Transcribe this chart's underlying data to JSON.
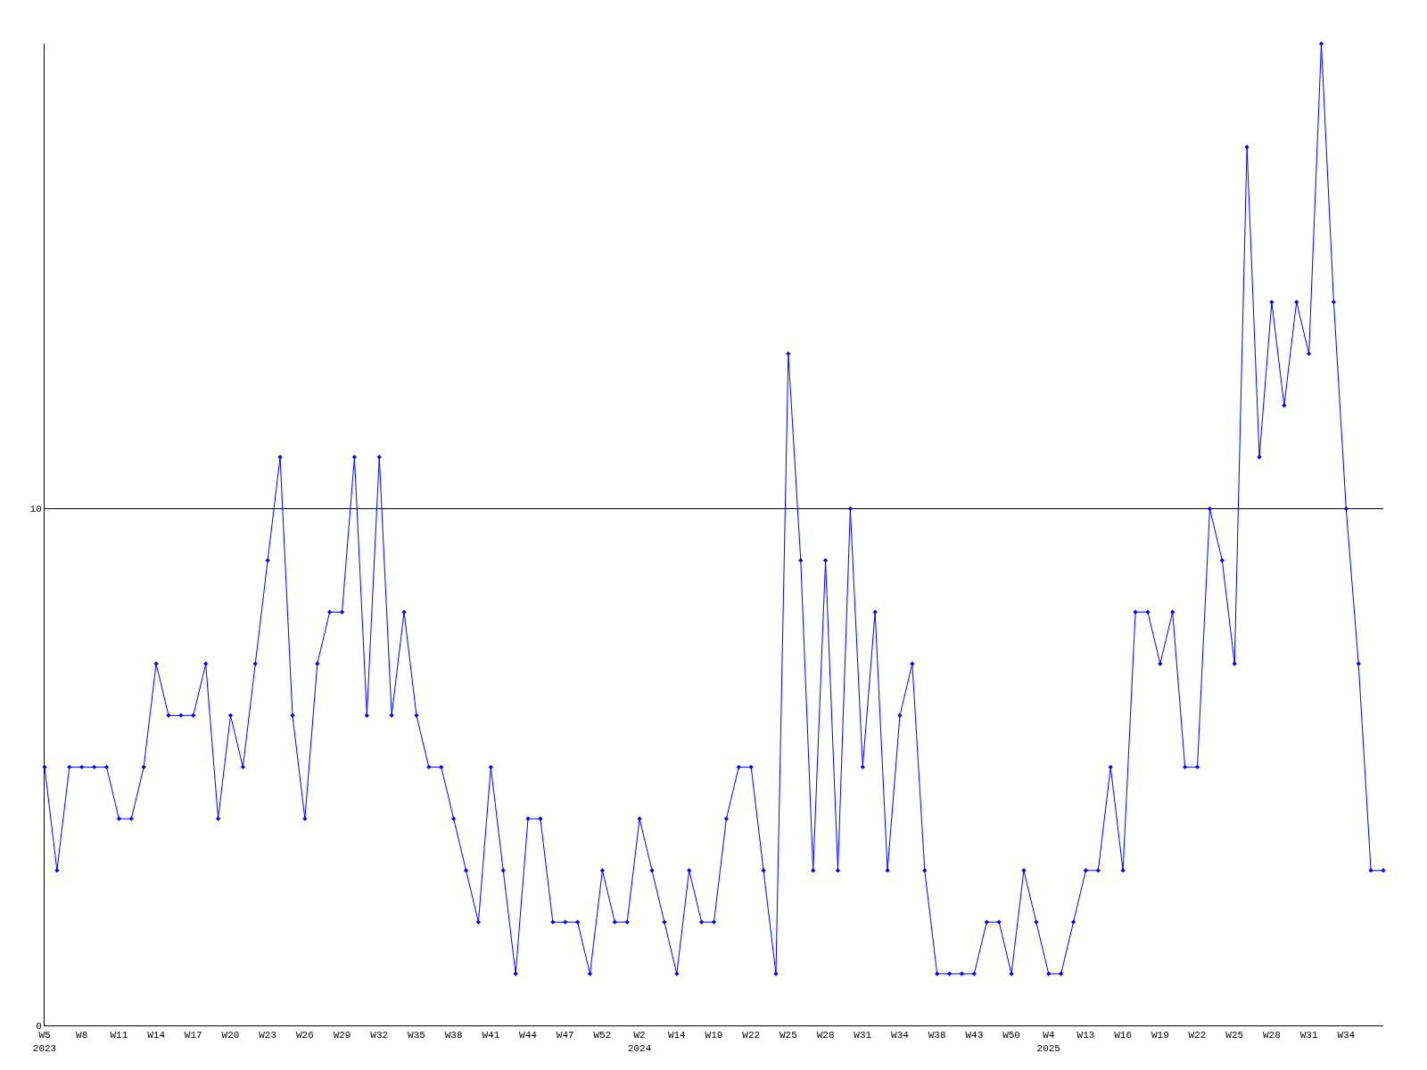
{
  "chart_data": {
    "type": "line",
    "categories": [
      "W5\n2023",
      null,
      null,
      "W8",
      null,
      null,
      "W11",
      null,
      null,
      "W14",
      null,
      null,
      "W17",
      null,
      null,
      "W20",
      null,
      null,
      "W23",
      null,
      null,
      "W26",
      null,
      null,
      "W29",
      null,
      null,
      "W32",
      null,
      null,
      "W35",
      null,
      null,
      "W38",
      null,
      null,
      "W41",
      null,
      null,
      "W44",
      null,
      null,
      "W47",
      null,
      null,
      "W52",
      null,
      null,
      "W2\n2024",
      null,
      null,
      "W14",
      null,
      null,
      "W19",
      null,
      null,
      "W22",
      null,
      null,
      "W25",
      null,
      null,
      "W28",
      null,
      null,
      "W31",
      null,
      null,
      "W34",
      null,
      null,
      "W38",
      null,
      null,
      "W43",
      null,
      null,
      "W50",
      null,
      null,
      "W4\n2025",
      null,
      null,
      "W13",
      null,
      null,
      "W16",
      null,
      null,
      "W19",
      null,
      null,
      "W22",
      null,
      null,
      "W25",
      null,
      null,
      "W28",
      null,
      null,
      "W31",
      null,
      null,
      "W34",
      null,
      null,
      null
    ],
    "series": [
      {
        "color": "#0000ff",
        "values": [
          5,
          3,
          5,
          5,
          5,
          5,
          4,
          4,
          5,
          7,
          6,
          6,
          6,
          7,
          4,
          6,
          5,
          7,
          9,
          11,
          6,
          4,
          7,
          8,
          8,
          11,
          6,
          11,
          6,
          8,
          6,
          5,
          5,
          4,
          3,
          2,
          5,
          3,
          1,
          4,
          4,
          2,
          2,
          2,
          1,
          3,
          2,
          2,
          4,
          3,
          2,
          1,
          3,
          2,
          2,
          4,
          5,
          5,
          3,
          1,
          13,
          9,
          3,
          9,
          3,
          10,
          5,
          8,
          3,
          6,
          7,
          3,
          1,
          1,
          1,
          1,
          2,
          2,
          1,
          3,
          2,
          1,
          1,
          2,
          3,
          3,
          5,
          3,
          8,
          8,
          7,
          8,
          5,
          5,
          10,
          9,
          7,
          17,
          11,
          14,
          12,
          14,
          13,
          19,
          14,
          10,
          7,
          3,
          3
        ]
      }
    ],
    "ylim": [
      0,
      19
    ],
    "yticks": [
      0,
      10
    ],
    "grid": "y",
    "marker": "diamond",
    "line_style": "solid",
    "legend": false
  }
}
